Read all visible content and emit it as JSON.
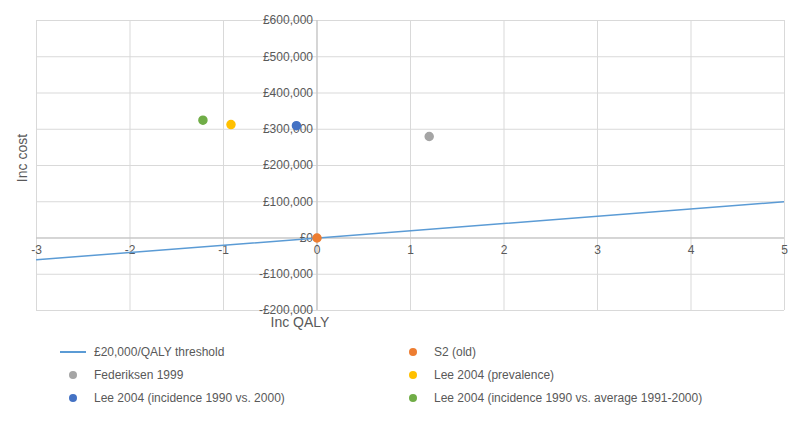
{
  "chart_data": {
    "type": "scatter",
    "xlabel": "Inc QALY",
    "ylabel": "Inc cost",
    "xlim": [
      -3,
      5
    ],
    "xticks": [
      -3,
      -2,
      -1,
      0,
      1,
      2,
      3,
      4,
      5
    ],
    "ylim": [
      -200000,
      600000
    ],
    "yticks": [
      {
        "value": -200000,
        "label": "-£200,000"
      },
      {
        "value": -100000,
        "label": "-£100,000"
      },
      {
        "value": 0,
        "label": "£0"
      },
      {
        "value": 100000,
        "label": "£100,000"
      },
      {
        "value": 200000,
        "label": "£200,000"
      },
      {
        "value": 300000,
        "label": "£300,000"
      },
      {
        "value": 400000,
        "label": "£400,000"
      },
      {
        "value": 500000,
        "label": "£500,000"
      },
      {
        "value": 600000,
        "label": "£600,000"
      }
    ],
    "grid": true,
    "legend": "bottom",
    "series": [
      {
        "name": "£20,000/QALY threshold",
        "type": "line",
        "color": "#5b9bd5",
        "x": [
          -3,
          5
        ],
        "values": [
          -60000,
          100000
        ]
      },
      {
        "name": "S2 (old)",
        "type": "scatter",
        "marker": "circle",
        "color": "#ed7d31",
        "x": [
          0
        ],
        "values": [
          0
        ]
      },
      {
        "name": "Federiksen 1999",
        "type": "scatter",
        "marker": "circle",
        "color": "#a5a5a5",
        "x": [
          1.2
        ],
        "values": [
          280000
        ]
      },
      {
        "name": "Lee 2004 (prevalence)",
        "type": "scatter",
        "marker": "circle",
        "color": "#ffc000",
        "x": [
          -0.92
        ],
        "values": [
          313000
        ]
      },
      {
        "name": "Lee 2004 (incidence 1990 vs. 2000)",
        "type": "scatter",
        "marker": "circle",
        "color": "#4472c4",
        "x": [
          -0.22
        ],
        "values": [
          310000
        ]
      },
      {
        "name": "Lee 2004 (incidence 1990 vs. average 1991-2000)",
        "type": "scatter",
        "marker": "circle",
        "color": "#70ad47",
        "x": [
          -1.22
        ],
        "values": [
          325000
        ]
      }
    ]
  }
}
